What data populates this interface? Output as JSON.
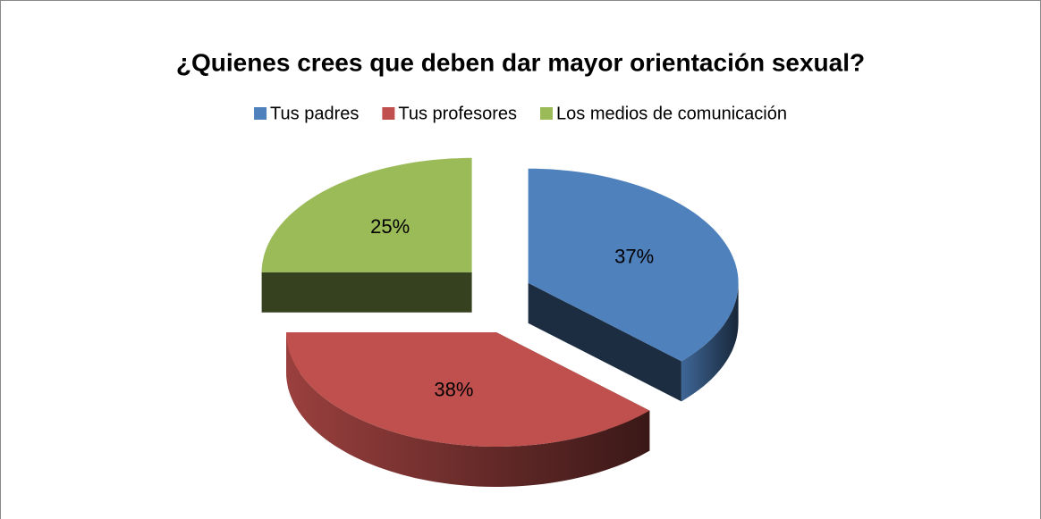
{
  "chart_data": {
    "type": "pie3d",
    "title": "¿Quienes crees que deben dar mayor orientación sexual?",
    "categories": [
      "Tus padres",
      "Tus profesores",
      "Los medios de comunicación"
    ],
    "values": [
      37,
      38,
      25
    ],
    "value_labels": [
      "37%",
      "38%",
      "25%"
    ],
    "colors": [
      "#4f81bd",
      "#c0504d",
      "#9bbb59"
    ],
    "legend": "top"
  }
}
